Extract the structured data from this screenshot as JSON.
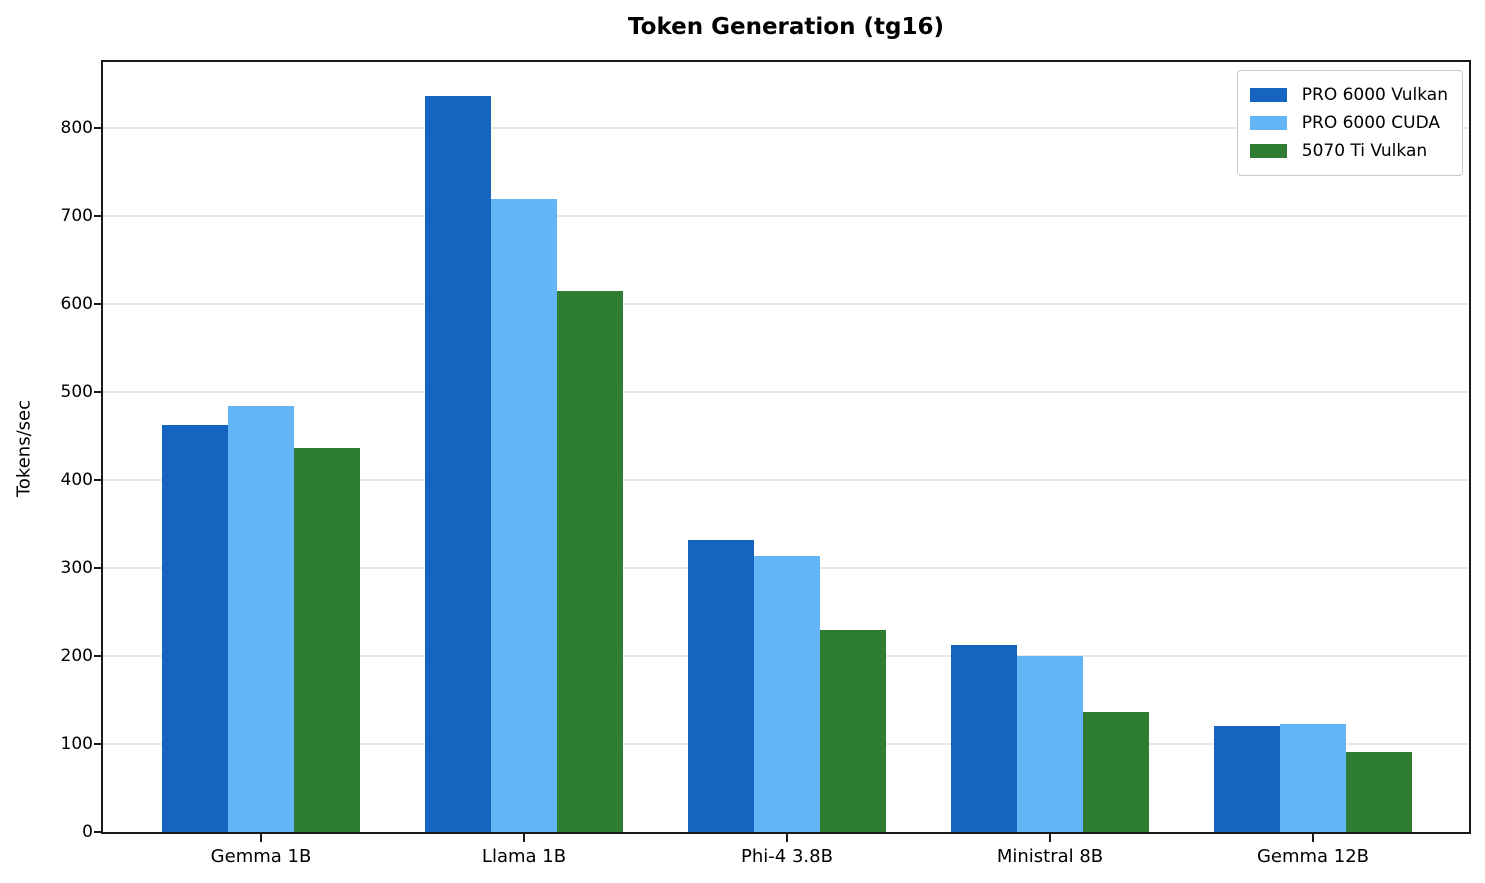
{
  "chart_data": {
    "type": "bar",
    "title": "Token Generation (tg16)",
    "xlabel": "",
    "ylabel": "Tokens/sec",
    "categories": [
      "Gemma 1B",
      "Llama 1B",
      "Phi-4 3.8B",
      "Ministral 8B",
      "Gemma 12B"
    ],
    "series": [
      {
        "name": "PRO 6000 Vulkan",
        "color": "#1565C0",
        "values": [
          463,
          836,
          332,
          212,
          120
        ]
      },
      {
        "name": "PRO 6000 CUDA",
        "color": "#64B5F6",
        "values": [
          484,
          719,
          314,
          200,
          123
        ]
      },
      {
        "name": "5070 Ti Vulkan",
        "color": "#2E7D32",
        "values": [
          436,
          615,
          229,
          136,
          91
        ]
      }
    ],
    "yticks": [
      0,
      100,
      200,
      300,
      400,
      500,
      600,
      700,
      800
    ],
    "ylim": [
      0,
      875
    ],
    "grid": "horizontal",
    "legend_position": "upper right",
    "plot_background": "#ffffff",
    "gridline_color": "#e7e7e7"
  }
}
